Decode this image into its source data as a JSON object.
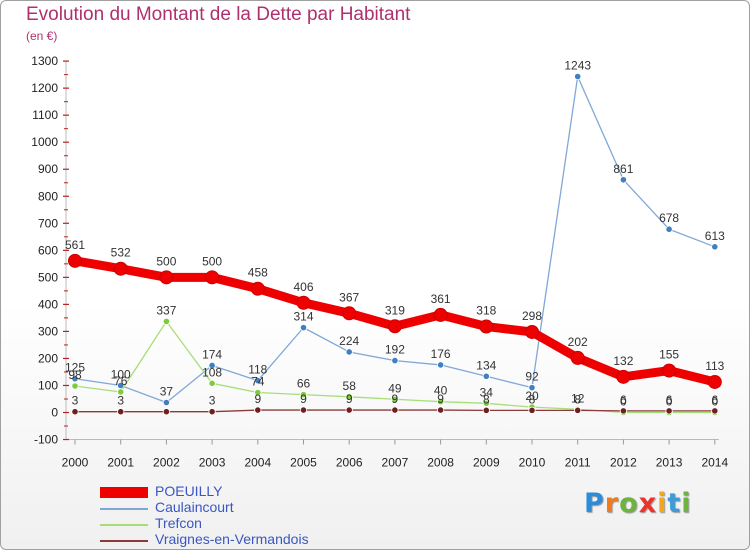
{
  "title": "Evolution du Montant de la Dette par Habitant",
  "unit": "(en €)",
  "logo": {
    "letters": [
      {
        "char": "P",
        "color": "#2e8bd8"
      },
      {
        "char": "r",
        "color": "#f07a1e"
      },
      {
        "char": "o",
        "color": "#6db33f"
      },
      {
        "char": "x",
        "color": "#e8352c"
      },
      {
        "char": "i",
        "color": "#f2a81d"
      },
      {
        "char": "t",
        "color": "#3e9bd6"
      },
      {
        "char": "i",
        "color": "#6db33f"
      }
    ]
  },
  "chart_data": {
    "type": "line",
    "title": "Evolution du Montant de la Dette par Habitant",
    "subtitle": "(en €)",
    "x": [
      "2000",
      "2001",
      "2002",
      "2003",
      "2004",
      "2005",
      "2006",
      "2007",
      "2008",
      "2009",
      "2010",
      "2011",
      "2012",
      "2013",
      "2014"
    ],
    "ylim": [
      -100,
      1300
    ],
    "yticks": [
      "-100",
      "0",
      "100",
      "200",
      "300",
      "400",
      "500",
      "600",
      "700",
      "800",
      "900",
      "1000",
      "1100",
      "1200",
      "1300"
    ],
    "grid": false,
    "legend_position": "bottom-left",
    "series": [
      {
        "name": "POEUILLY",
        "color": "#ee0000",
        "marker": "#ee0000",
        "style": "thick",
        "values": [
          561,
          532,
          500,
          500,
          458,
          406,
          367,
          319,
          361,
          318,
          298,
          202,
          132,
          155,
          113
        ],
        "labels": [
          "561",
          "532",
          "500",
          "500",
          "458",
          "406",
          "367",
          "319",
          "361",
          "318",
          "298",
          "202",
          "132",
          "155",
          "113"
        ]
      },
      {
        "name": "Caulaincourt",
        "color": "#7fa8d8",
        "marker": "#3f7fc2",
        "style": "thin",
        "values": [
          125,
          100,
          37,
          174,
          118,
          314,
          224,
          192,
          176,
          134,
          92,
          1243,
          861,
          678,
          613
        ],
        "labels": [
          "125",
          "100",
          "37",
          "174",
          "118",
          "314",
          "224",
          "192",
          "176",
          "134",
          "92",
          "1243",
          "861",
          "678",
          "613"
        ]
      },
      {
        "name": "Trefcon",
        "color": "#a8de7a",
        "marker": "#7dcc3c",
        "style": "thin",
        "values": [
          98,
          76,
          337,
          108,
          74,
          66,
          58,
          49,
          40,
          34,
          20,
          12,
          0,
          0,
          0
        ],
        "labels": [
          "98",
          "76",
          "337",
          "108",
          "74",
          "66",
          "58",
          "49",
          "40",
          "34",
          "20",
          "12",
          "0",
          "0",
          "0"
        ]
      },
      {
        "name": "Vraignes-en-Vermandois",
        "color": "#8b3a3a",
        "marker": "#6e2020",
        "style": "thin",
        "values": [
          3,
          3,
          3,
          3,
          9,
          9,
          9,
          9,
          9,
          8,
          8,
          8,
          6,
          6,
          6
        ],
        "labels": [
          "3",
          "3",
          "",
          "3",
          "9",
          "9",
          "9",
          "9",
          "9",
          "8",
          "8",
          "8",
          "6",
          "6",
          "6"
        ]
      }
    ]
  }
}
